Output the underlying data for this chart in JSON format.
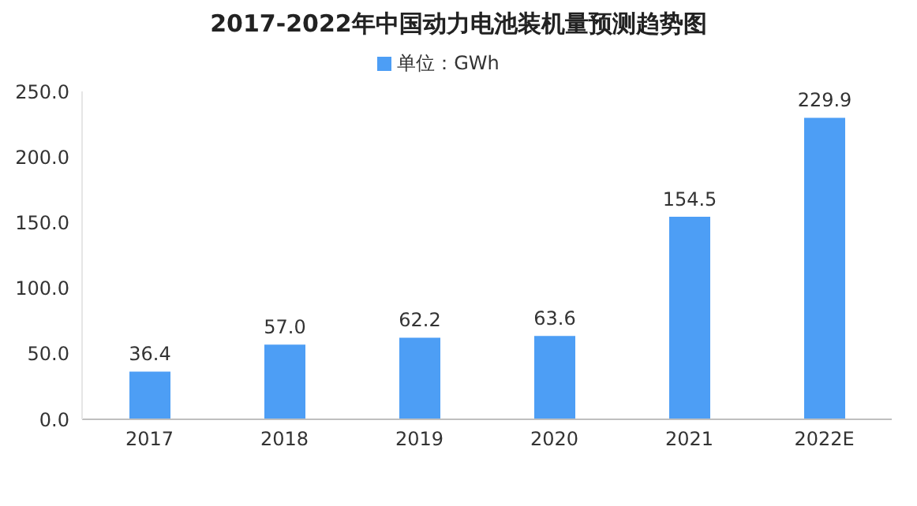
{
  "chart_data": {
    "type": "bar",
    "title": "2017-2022年中国动力电池装机量预测趋势图",
    "categories": [
      "2017",
      "2018",
      "2019",
      "2020",
      "2021",
      "2022E"
    ],
    "series": [
      {
        "name": "单位：GWh",
        "color": "#4d9ef5",
        "values": [
          36.4,
          57.0,
          62.2,
          63.6,
          154.5,
          229.9
        ],
        "value_labels": [
          "36.4",
          "57.0",
          "62.2",
          "63.6",
          "154.5",
          "229.9"
        ]
      }
    ],
    "ylim": [
      0,
      250
    ],
    "yticks": [
      {
        "value": 0,
        "label": "0.0"
      },
      {
        "value": 50,
        "label": "50.0"
      },
      {
        "value": 100,
        "label": "100.0"
      },
      {
        "value": 150,
        "label": "150.0"
      },
      {
        "value": 200,
        "label": "200.0"
      },
      {
        "value": 250,
        "label": "250.0"
      }
    ],
    "legend": "top"
  }
}
